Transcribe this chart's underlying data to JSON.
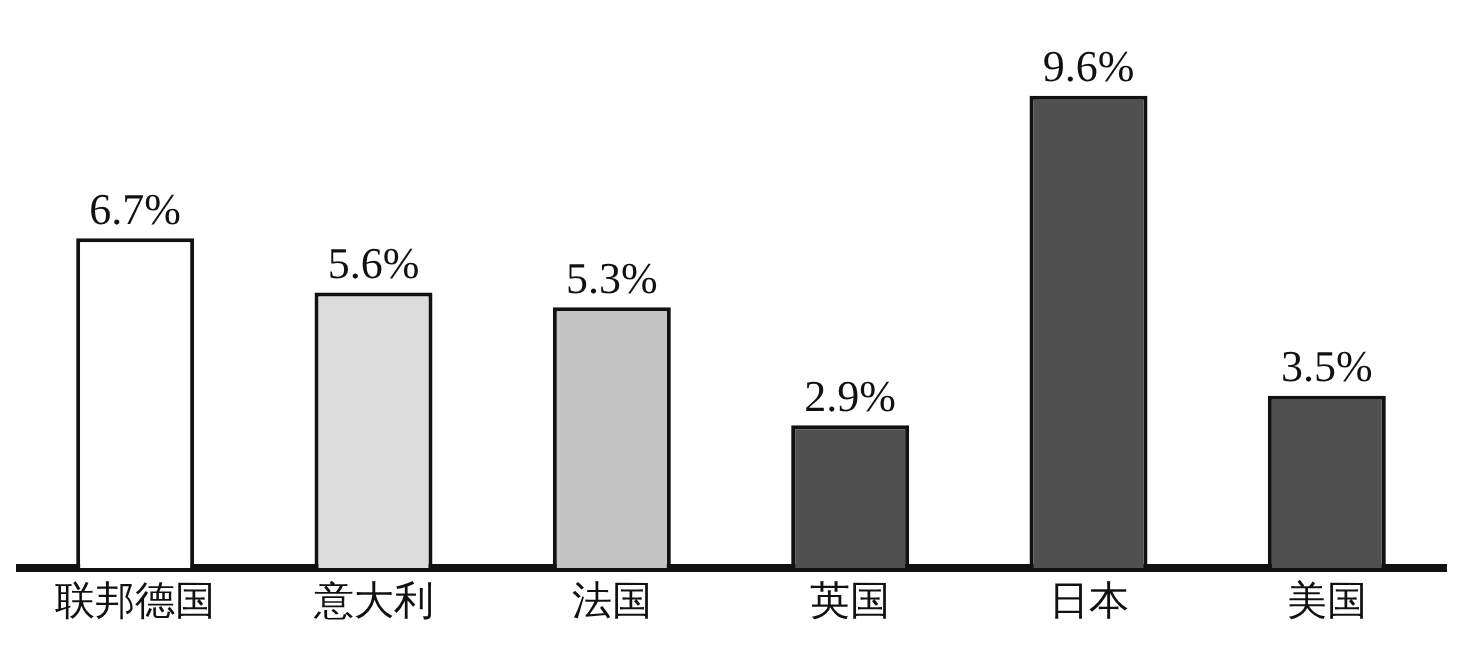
{
  "chart_data": {
    "type": "bar",
    "categories": [
      "联邦德国",
      "意大利",
      "法国",
      "英国",
      "日本",
      "美国"
    ],
    "values": [
      6.7,
      5.6,
      5.3,
      2.9,
      9.6,
      3.5
    ],
    "colors": [
      "#ffffff",
      "#dcdcdc",
      "#c4c4c4",
      "#505050",
      "#505050",
      "#505050"
    ],
    "value_labels": [
      "6.7%",
      "5.6%",
      "5.3%",
      "2.9%",
      "9.6%",
      "3.5%"
    ],
    "grid": false,
    "legend": false
  }
}
